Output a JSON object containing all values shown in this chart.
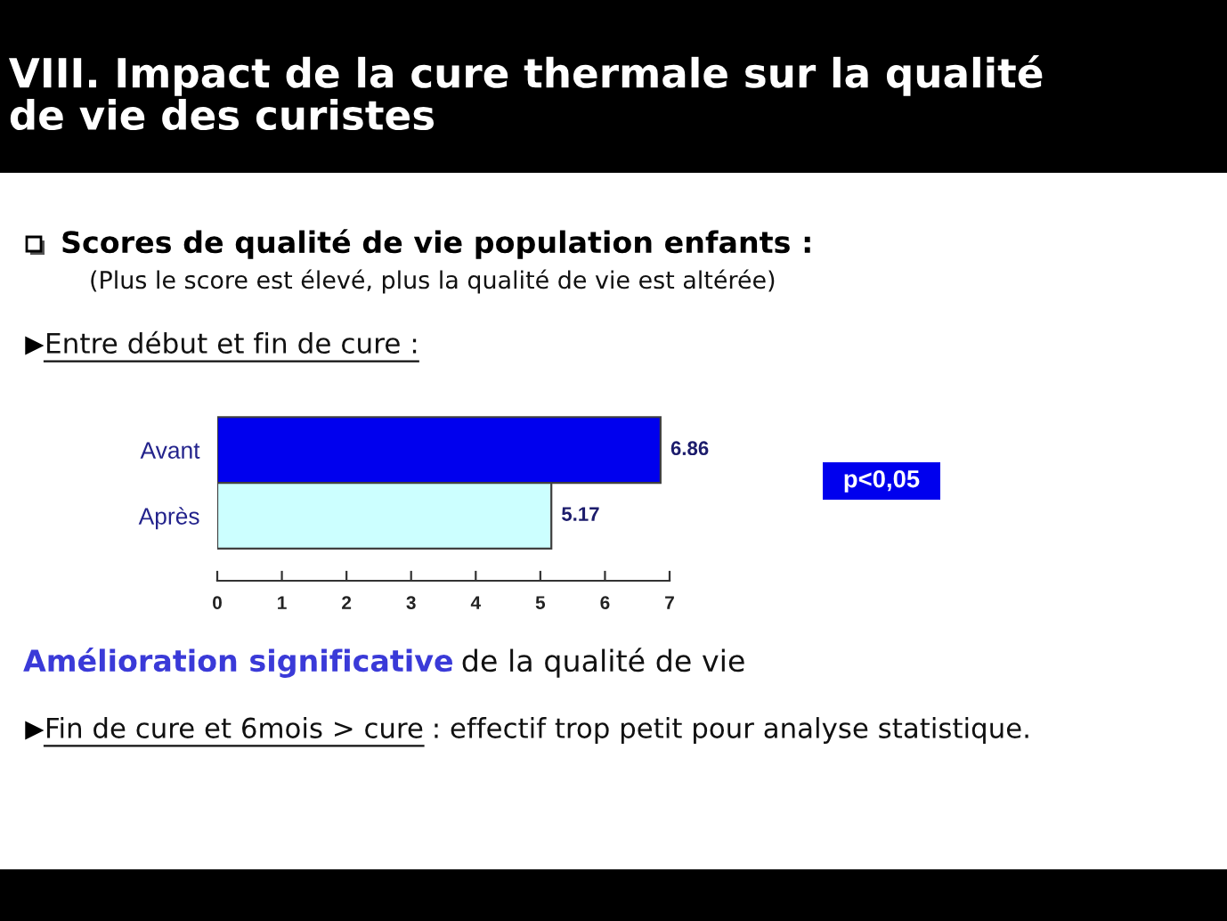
{
  "chart_data": {
    "type": "bar",
    "orientation": "horizontal",
    "title": "VIII. Impact de la cure thermale sur la qualité de vie des curistes",
    "subtitle": "Scores de qualité de vie population enfants :",
    "annotations": [
      "(Plus le score est élevé, plus la qualité de vie est altérée)",
      "Entre début et fin de cure :",
      "p<0,05",
      "Amélioration significative",
      "de la qualité de vie",
      "Fin de cure et 6mois > cure",
      ": effectif trop petit pour analyse statistique."
    ],
    "categories": [
      "Avant",
      "Après"
    ],
    "values": [
      6.86,
      5.17
    ],
    "colors": [
      "#0000ee",
      "#ccffff"
    ],
    "data_labels": true,
    "xlim": [
      0,
      7
    ],
    "xticks": [
      0,
      1,
      2,
      3,
      4,
      5,
      6,
      7
    ]
  }
}
